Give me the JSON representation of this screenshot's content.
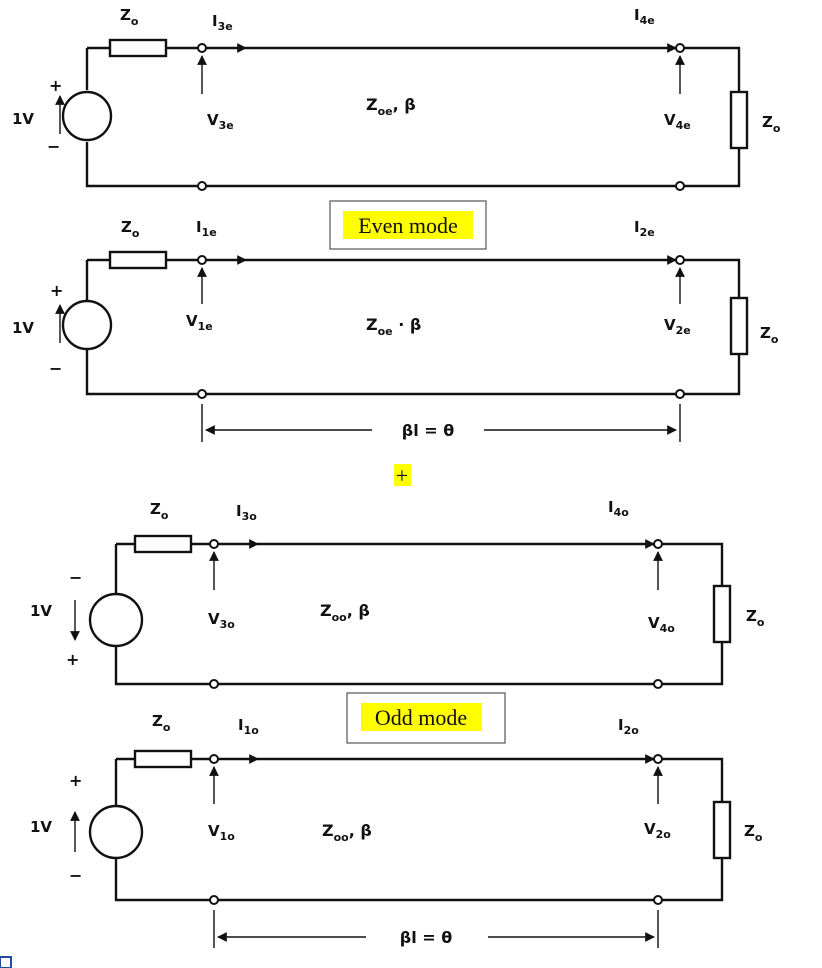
{
  "even_section": {
    "circuit_top": {
      "source_label": "1V",
      "source_sign_top": "+",
      "source_sign_bottom": "−",
      "source_impedance": "Z",
      "source_impedance_sub": "o",
      "current_in": "I",
      "current_in_sub": "3e",
      "current_out": "I",
      "current_out_sub": "4e",
      "voltage_in": "V",
      "voltage_in_sub": "3e",
      "voltage_out": "V",
      "voltage_out_sub": "4e",
      "line_label": "Z",
      "line_label_sub": "oe",
      "line_label_suffix": ", β",
      "load_impedance": "Z",
      "load_impedance_sub": "o"
    },
    "mode_label": "Even mode",
    "circuit_bottom": {
      "source_label": "1V",
      "source_sign_top": "+",
      "source_sign_bottom": "−",
      "source_impedance": "Z",
      "source_impedance_sub": "o",
      "current_in": "I",
      "current_in_sub": "1e",
      "current_out": "I",
      "current_out_sub": "2e",
      "voltage_in": "V",
      "voltage_in_sub": "1e",
      "voltage_out": "V",
      "voltage_out_sub": "2e",
      "line_label": "Z",
      "line_label_sub": "oe",
      "line_label_suffix": " · β",
      "load_impedance": "Z",
      "load_impedance_sub": "o"
    },
    "length_label": "βl = θ"
  },
  "plus_label": "+",
  "odd_section": {
    "circuit_top": {
      "source_label": "1V",
      "source_sign_top": "−",
      "source_sign_bottom": "+",
      "source_impedance": "Z",
      "source_impedance_sub": "o",
      "current_in": "I",
      "current_in_sub": "3o",
      "current_out": "I",
      "current_out_sub": "4o",
      "voltage_in": "V",
      "voltage_in_sub": "3o",
      "voltage_out": "V",
      "voltage_out_sub": "4o",
      "line_label": "Z",
      "line_label_sub": "oo",
      "line_label_suffix": ", β",
      "load_impedance": "Z",
      "load_impedance_sub": "o"
    },
    "mode_label": "Odd mode",
    "circuit_bottom": {
      "source_label": "1V",
      "source_sign_top": "+",
      "source_sign_bottom": "−",
      "source_impedance": "Z",
      "source_impedance_sub": "o",
      "current_in": "I",
      "current_in_sub": "1o",
      "current_out": "I",
      "current_out_sub": "2o",
      "voltage_in": "V",
      "voltage_in_sub": "1o",
      "voltage_out": "V",
      "voltage_out_sub": "2o",
      "line_label": "Z",
      "line_label_sub": "oo",
      "line_label_suffix": ", β",
      "load_impedance": "Z",
      "load_impedance_sub": "o"
    },
    "length_label": "βl = θ"
  },
  "colors": {
    "highlight": "#ffff00",
    "ink": "#111111",
    "label_box_border": "#555555",
    "corner_marker": "#1f4e9a"
  }
}
